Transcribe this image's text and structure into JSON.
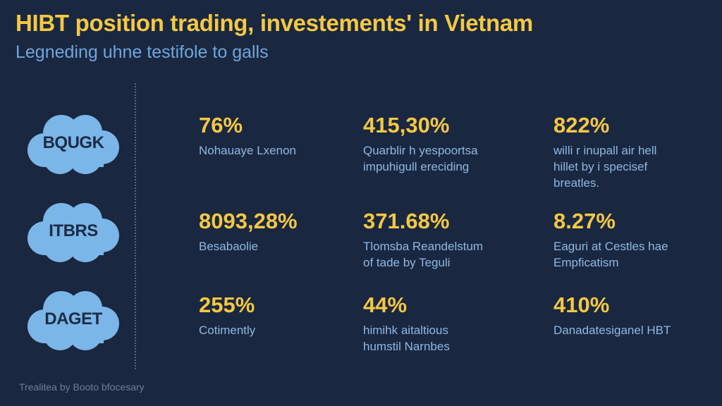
{
  "header": {
    "title": "HIBT position trading, investements' in Vietnam",
    "subtitle": "Legneding uhne testifole to galls"
  },
  "rows": [
    {
      "tag": "BQUGK",
      "cells": [
        {
          "value": "76%",
          "desc": "Nohauaye Lxenon"
        },
        {
          "value": "415,30%",
          "desc": "Quarblir h yespoortsa\nimpuhigull ereciding"
        },
        {
          "value": "822%",
          "desc": "willi r inupall air hell\nhillet by i specisef\nbreatles."
        }
      ]
    },
    {
      "tag": "ITBRS",
      "cells": [
        {
          "value": "8093,28%",
          "desc": "Besabaolie"
        },
        {
          "value": "371.68%",
          "desc": "Tlomsba Reandelstum\nof tade by Teguli"
        },
        {
          "value": "8.27%",
          "desc": "Eaguri at Cestles hae\nEmpficatism"
        }
      ]
    },
    {
      "tag": "DAGET",
      "cells": [
        {
          "value": "255%",
          "desc": "Cotimently"
        },
        {
          "value": "44%",
          "desc": "himihk aitaltious\nhumstil Narnbes"
        },
        {
          "value": "410%",
          "desc": "Danadatesiganel HBT"
        }
      ]
    }
  ],
  "footer": {
    "text": "Trealitea by Booto bfocesary"
  },
  "colors": {
    "background": "#1a2740",
    "accent": "#f3c843",
    "text_blue": "#8fb8e3",
    "cloud": "#7bb6e8"
  }
}
